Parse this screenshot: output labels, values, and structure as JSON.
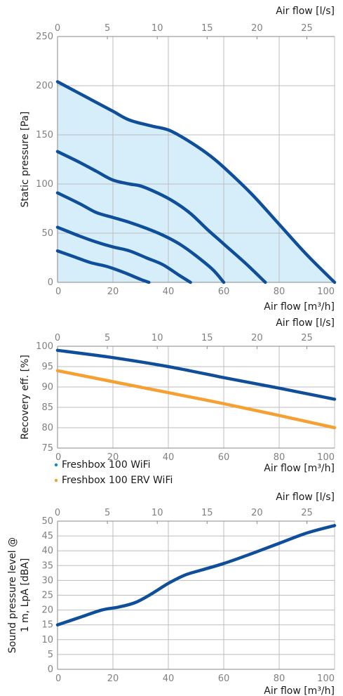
{
  "colors": {
    "blue": "#0f4f9a",
    "orange": "#f6a033",
    "fill": "#d6edfa",
    "grid": "#bdbdbd",
    "axis": "#8a8a8a",
    "dot_blue": "#1b84c5"
  },
  "chart_data": [
    {
      "type": "area",
      "ylabel": "Static pressure [Pa]",
      "xlabel_bottom": "Air flow [m³/h]",
      "xlabel_top": "Air flow [l/s]",
      "xlim": [
        0,
        100
      ],
      "ylim": [
        0,
        250
      ],
      "x_ticks": [
        "0",
        "20",
        "40",
        "60",
        "80",
        "100"
      ],
      "y_ticks": [
        "0",
        "50",
        "100",
        "150",
        "200",
        "250"
      ],
      "top_ticks": [
        "0",
        "5",
        "10",
        "15",
        "20",
        "25"
      ],
      "grid": true,
      "shaded_region": "max curve",
      "series": [
        {
          "points": [
            [
              0,
              204
            ],
            [
              12,
              186
            ],
            [
              20,
              174
            ],
            [
              26,
              165
            ],
            [
              34,
              159
            ],
            [
              40,
              155
            ],
            [
              46,
              146
            ],
            [
              54,
              131
            ],
            [
              60,
              117
            ],
            [
              70,
              90
            ],
            [
              80,
              59
            ],
            [
              90,
              28
            ],
            [
              100,
              0
            ]
          ]
        },
        {
          "points": [
            [
              0,
              133
            ],
            [
              8,
              122
            ],
            [
              14,
              113
            ],
            [
              20,
              104
            ],
            [
              26,
              100
            ],
            [
              30,
              98
            ],
            [
              36,
              91
            ],
            [
              42,
              82
            ],
            [
              48,
              70
            ],
            [
              54,
              54
            ],
            [
              60,
              39
            ],
            [
              68,
              19
            ],
            [
              75,
              0
            ]
          ]
        },
        {
          "points": [
            [
              0,
              91
            ],
            [
              8,
              80
            ],
            [
              14,
              71
            ],
            [
              20,
              66
            ],
            [
              26,
              61
            ],
            [
              32,
              55
            ],
            [
              38,
              48
            ],
            [
              44,
              39
            ],
            [
              50,
              27
            ],
            [
              56,
              13
            ],
            [
              60,
              0
            ]
          ]
        },
        {
          "points": [
            [
              0,
              56
            ],
            [
              8,
              47
            ],
            [
              14,
              41
            ],
            [
              20,
              36
            ],
            [
              26,
              32
            ],
            [
              32,
              25
            ],
            [
              38,
              18
            ],
            [
              44,
              7
            ],
            [
              48,
              0
            ]
          ]
        },
        {
          "points": [
            [
              0,
              32
            ],
            [
              6,
              26
            ],
            [
              12,
              20
            ],
            [
              18,
              16
            ],
            [
              24,
              10
            ],
            [
              30,
              3
            ],
            [
              33,
              0
            ]
          ]
        }
      ]
    },
    {
      "type": "line",
      "ylabel": "Recovery eff. [%]",
      "xlabel_bottom": "Air flow [m³/h]",
      "xlabel_top": "Air flow [l/s]",
      "xlim": [
        0,
        100
      ],
      "ylim": [
        75,
        100
      ],
      "x_ticks": [
        "0",
        "20",
        "40",
        "60",
        "80",
        "100"
      ],
      "y_ticks": [
        "75",
        "80",
        "85",
        "90",
        "95",
        "100"
      ],
      "top_ticks": [
        "0",
        "5",
        "10",
        "15",
        "20",
        "25"
      ],
      "grid": true,
      "legend_position": "bottom-left",
      "series": [
        {
          "name": "Freshbox 100 WiFi",
          "color_key": "blue",
          "points": [
            [
              0,
              99
            ],
            [
              20,
              97.2
            ],
            [
              40,
              95
            ],
            [
              60,
              92.3
            ],
            [
              80,
              89.7
            ],
            [
              100,
              87
            ]
          ]
        },
        {
          "name": "Freshbox 100 ERV WiFi",
          "color_key": "orange",
          "points": [
            [
              0,
              94
            ],
            [
              20,
              91.3
            ],
            [
              40,
              88.6
            ],
            [
              60,
              85.9
            ],
            [
              80,
              83
            ],
            [
              100,
              80
            ]
          ]
        }
      ]
    },
    {
      "type": "line",
      "ylabel_line1": "Sound pressure level @",
      "ylabel_line2": "1 m, LpA [dBA]",
      "xlabel_bottom": "Air flow [m³/h]",
      "xlabel_top": "Air flow [l/s]",
      "xlim": [
        0,
        100
      ],
      "ylim": [
        0,
        50
      ],
      "x_ticks": [
        "0",
        "20",
        "40",
        "60",
        "80",
        "100"
      ],
      "y_ticks": [
        "0",
        "5",
        "10",
        "15",
        "20",
        "25",
        "30",
        "35",
        "40",
        "45",
        "50"
      ],
      "top_ticks": [
        "0",
        "5",
        "10",
        "15",
        "20",
        "25"
      ],
      "grid": true,
      "series": [
        {
          "points": [
            [
              0,
              15
            ],
            [
              8,
              17.5
            ],
            [
              16,
              20
            ],
            [
              22,
              21
            ],
            [
              28,
              22.5
            ],
            [
              34,
              25.5
            ],
            [
              40,
              29
            ],
            [
              46,
              31.8
            ],
            [
              52,
              33.5
            ],
            [
              60,
              35.7
            ],
            [
              70,
              39
            ],
            [
              80,
              42.5
            ],
            [
              90,
              46
            ],
            [
              100,
              48.5
            ]
          ]
        }
      ]
    }
  ]
}
